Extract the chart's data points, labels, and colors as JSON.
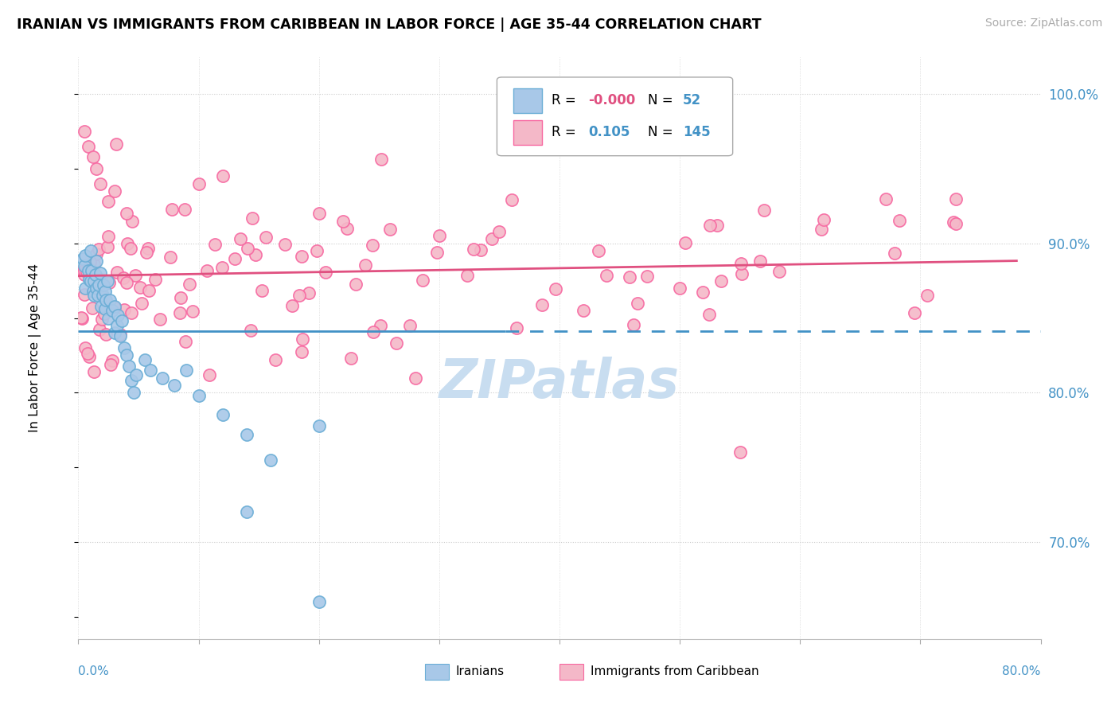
{
  "title": "IRANIAN VS IMMIGRANTS FROM CARIBBEAN IN LABOR FORCE | AGE 35-44 CORRELATION CHART",
  "source": "Source: ZipAtlas.com",
  "ylabel": "In Labor Force | Age 35-44",
  "right_yticks": [
    "70.0%",
    "80.0%",
    "90.0%",
    "100.0%"
  ],
  "right_ytick_vals": [
    0.7,
    0.8,
    0.9,
    1.0
  ],
  "xmin": 0.0,
  "xmax": 0.8,
  "ymin": 0.635,
  "ymax": 1.025,
  "color_iranian": "#a8c8e8",
  "color_caribbean": "#f4b8c8",
  "color_iranian_edge": "#6baed6",
  "color_caribbean_edge": "#f768a1",
  "color_iranian_line": "#4292c6",
  "color_caribbean_line": "#e05080",
  "color_R_negative": "#e05080",
  "color_R_positive": "#4292c6",
  "color_N": "#4292c6",
  "N_iranian": 52,
  "N_caribbean": 145,
  "watermark_color": "#c8ddf0",
  "legend_R_label": "R =",
  "legend_N_label": "N ="
}
